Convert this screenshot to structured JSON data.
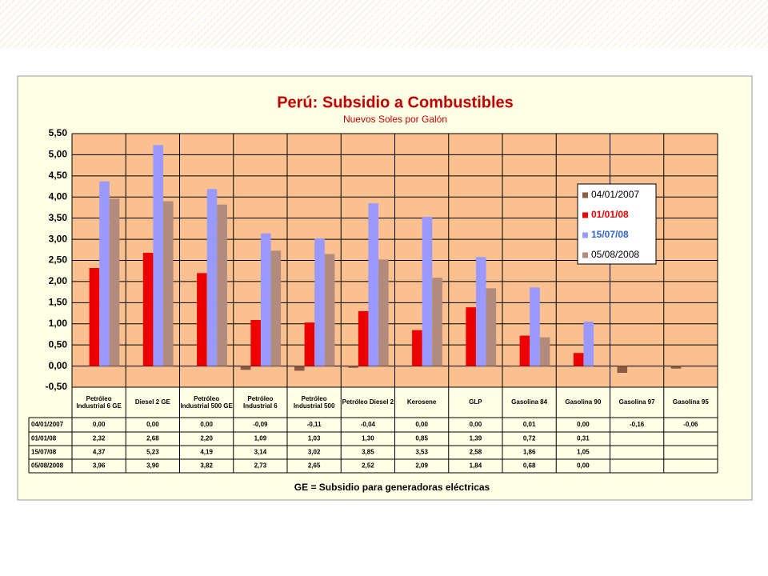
{
  "chart_data": {
    "type": "bar",
    "title": "Perú: Subsidio a Combustibles",
    "subtitle": "Nuevos Soles por Galón",
    "footnote": "GE = Subsidio para generadoras eléctricas",
    "categories": [
      "Petróleo Industrial 6 GE",
      "Diesel 2 GE",
      "Petróleo Industrial 500 GE",
      "Petróleo Industrial 6",
      "Petróleo Industrial 500",
      "Petróleo Diesel 2",
      "Kerosene",
      "GLP",
      "Gasolina 84",
      "Gasolina 90",
      "Gasolina 97",
      "Gasolina 95"
    ],
    "series": [
      {
        "name": "04/01/2007",
        "color": "#8b5a45",
        "values": [
          0.0,
          0.0,
          0.0,
          -0.09,
          -0.11,
          -0.04,
          0.0,
          0.0,
          0.01,
          0.0,
          -0.16,
          -0.06
        ],
        "value_labels": [
          "0,00",
          "0,00",
          "0,00",
          "-0,09",
          "-0,11",
          "-0,04",
          "0,00",
          "0,00",
          "0,01",
          "0,00",
          "-0,16",
          "-0,06"
        ]
      },
      {
        "name": "01/01/08",
        "color": "#ee0000",
        "label_color": "#ee0000",
        "values": [
          2.32,
          2.68,
          2.2,
          1.09,
          1.03,
          1.3,
          0.85,
          1.39,
          0.72,
          0.31,
          null,
          null
        ],
        "value_labels": [
          "2,32",
          "2,68",
          "2,20",
          "1,09",
          "1,03",
          "1,30",
          "0,85",
          "1,39",
          "0,72",
          "0,31",
          null,
          null
        ]
      },
      {
        "name": "15/07/08",
        "color": "#9999ff",
        "label_color": "#3366cc",
        "values": [
          4.37,
          5.23,
          4.19,
          3.14,
          3.02,
          3.85,
          3.53,
          2.58,
          1.86,
          1.05,
          null,
          null
        ],
        "value_labels": [
          "4,37",
          "5,23",
          "4,19",
          "3,14",
          "3,02",
          "3,85",
          "3,53",
          "2,58",
          "1,86",
          "1,05",
          null,
          null
        ]
      },
      {
        "name": "05/08/2008",
        "color": "#b38b7d",
        "values": [
          3.96,
          3.9,
          3.82,
          2.73,
          2.65,
          2.52,
          2.09,
          1.84,
          0.68,
          0.0,
          null,
          null
        ],
        "value_labels": [
          "3,96",
          "3,90",
          "3,82",
          "2,73",
          "2,65",
          "2,52",
          "2,09",
          "1,84",
          "0,68",
          "0,00",
          null,
          null
        ]
      }
    ],
    "ylim": [
      -0.5,
      5.5
    ],
    "yticks": [
      {
        "value": -0.5,
        "label": "-0,50"
      },
      {
        "value": 0,
        "label": "0,00"
      },
      {
        "value": 0.5,
        "label": "0,50"
      },
      {
        "value": 1,
        "label": "1,00"
      },
      {
        "value": 1.5,
        "label": "1,50"
      },
      {
        "value": 2,
        "label": "2,00"
      },
      {
        "value": 2.5,
        "label": "2,50"
      },
      {
        "value": 3,
        "label": "3,00"
      },
      {
        "value": 3.5,
        "label": "3,50"
      },
      {
        "value": 4,
        "label": "4,00"
      },
      {
        "value": 4.5,
        "label": "4,50"
      },
      {
        "value": 5,
        "label": "5,00"
      },
      {
        "value": 5.5,
        "label": "5,50"
      }
    ],
    "grid": true
  }
}
